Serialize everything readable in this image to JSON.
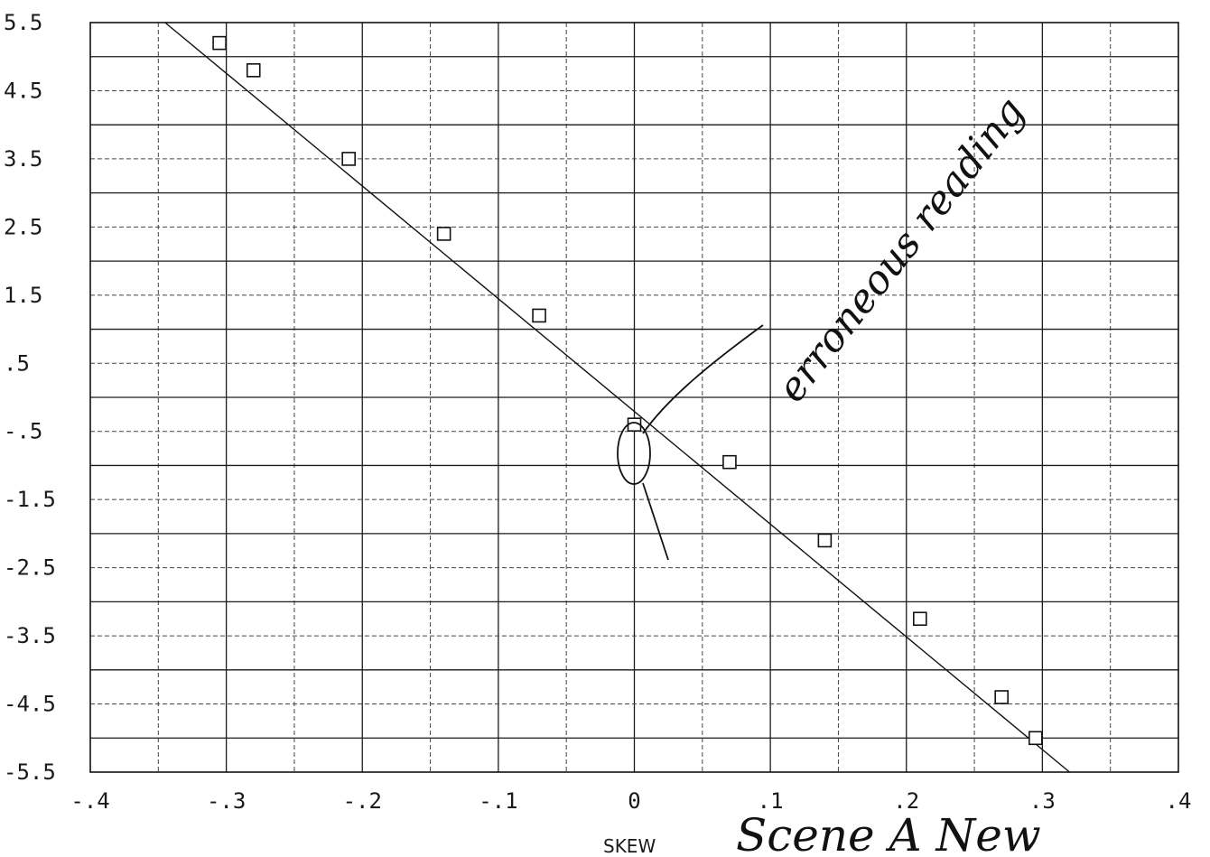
{
  "chart_data": {
    "type": "scatter",
    "xlabel": "SKEW",
    "x_ticks": [
      "-.4",
      "-.3",
      "-.2",
      "-.1",
      "0",
      ".1",
      ".2",
      ".3",
      ".4"
    ],
    "y_ticks": [
      "5.5",
      "4.5",
      "3.5",
      "2.5",
      "1.5",
      ".5",
      "-.5",
      "-1.5",
      "-2.5",
      "-3.5",
      "-4.5",
      "-5.5"
    ],
    "xlim": [
      -0.4,
      0.4
    ],
    "ylim": [
      -5.5,
      5.5
    ],
    "grid": true,
    "series": [
      {
        "points": [
          {
            "x": -0.305,
            "y": 5.2
          },
          {
            "x": -0.28,
            "y": 4.8
          },
          {
            "x": -0.21,
            "y": 3.5
          },
          {
            "x": -0.14,
            "y": 2.4
          },
          {
            "x": -0.07,
            "y": 1.2
          },
          {
            "x": 0.0,
            "y": -0.4
          },
          {
            "x": 0.07,
            "y": -0.95
          },
          {
            "x": 0.14,
            "y": -2.1
          },
          {
            "x": 0.21,
            "y": -3.25
          },
          {
            "x": 0.27,
            "y": -4.4
          },
          {
            "x": 0.295,
            "y": -5.0
          }
        ]
      }
    ],
    "fit_line": {
      "x": [
        -0.345,
        0.32
      ],
      "y": [
        5.5,
        -5.5
      ]
    },
    "annotations": [
      {
        "text": "erroneous reading",
        "x": 0.0,
        "y": -0.4
      }
    ],
    "handwritten_note": "Scene A New"
  }
}
